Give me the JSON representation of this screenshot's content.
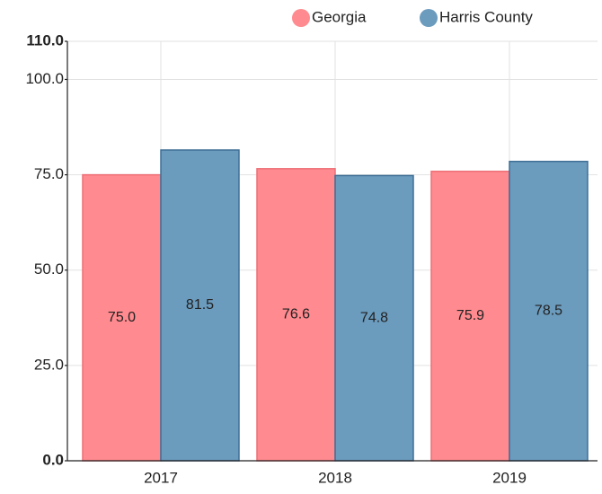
{
  "chart_data": {
    "type": "bar",
    "categories": [
      "2017",
      "2018",
      "2019"
    ],
    "series": [
      {
        "name": "Georgia",
        "color": "#ff8a8f",
        "values": [
          75.0,
          76.6,
          75.9
        ],
        "value_labels": [
          "75.0",
          "76.6",
          "75.9"
        ]
      },
      {
        "name": "Harris County",
        "color": "#6b9bbd",
        "values": [
          81.5,
          74.8,
          78.5
        ],
        "value_labels": [
          "81.5",
          "74.8",
          "78.5"
        ]
      }
    ],
    "ylim": [
      0,
      110
    ],
    "yticks": [
      {
        "value": 0,
        "label": "0.0"
      },
      {
        "value": 25,
        "label": "25.0"
      },
      {
        "value": 50,
        "label": "50.0"
      },
      {
        "value": 75,
        "label": "75.0"
      },
      {
        "value": 100,
        "label": "100.0"
      },
      {
        "value": 110,
        "label": "110.0"
      }
    ],
    "grid": true,
    "legend": "top-right"
  }
}
